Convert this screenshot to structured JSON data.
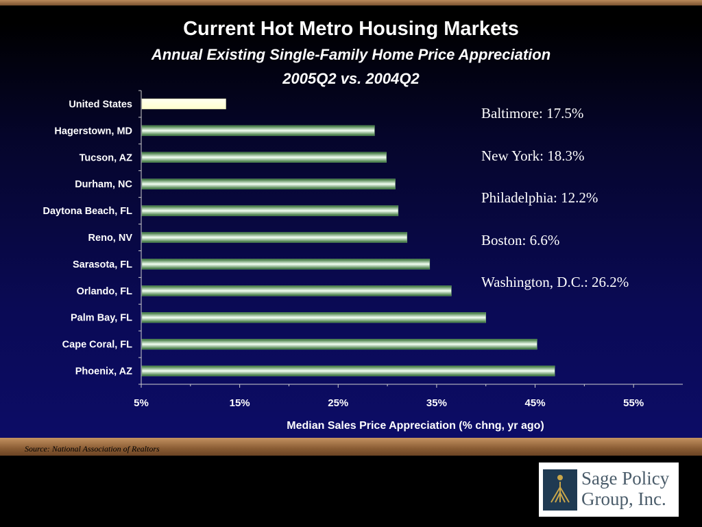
{
  "slide": {
    "title": "Current Hot Metro Housing Markets",
    "subtitle": "Annual Existing Single-Family Home Price Appreciation",
    "period": "2005Q2 vs. 2004Q2",
    "source": "Source: National Association of Realtors"
  },
  "callouts": [
    "Baltimore: 17.5%",
    "New York: 18.3%",
    "Philadelphia: 12.2%",
    "Boston: 6.6%",
    "Washington, D.C.: 26.2%"
  ],
  "logo": {
    "line1": "Sage Policy",
    "line2": "Group, Inc."
  },
  "colors": {
    "highlight": "#ffffcc",
    "bar": "#3a7a3a",
    "bar_light": "#ffffff",
    "text": "#ffffff",
    "accent": "#b9895a"
  },
  "chart_data": {
    "type": "bar",
    "orientation": "horizontal",
    "title": "Current Hot Metro Housing Markets",
    "subtitle": "Annual Existing Single-Family Home Price Appreciation",
    "xlabel": "Median Sales Price Appreciation (% chng, yr ago)",
    "ylabel": "",
    "xlim": [
      5,
      60
    ],
    "xticks": [
      5,
      15,
      25,
      35,
      45,
      55
    ],
    "xtick_labels": [
      "5%",
      "15%",
      "25%",
      "35%",
      "45%",
      "55%"
    ],
    "categories": [
      "United States",
      "Hagerstown, MD",
      "Tucson, AZ",
      "Durham, NC",
      "Daytona Beach, FL",
      "Reno, NV",
      "Sarasota, FL",
      "Orlando, FL",
      "Palm Bay, FL",
      "Cape Coral, FL",
      "Phoenix, AZ"
    ],
    "values": [
      13.6,
      28.7,
      29.9,
      30.8,
      31.1,
      32.0,
      34.3,
      36.5,
      40.0,
      45.2,
      47.0
    ],
    "highlight_category": "United States",
    "grid": false,
    "legend": "none"
  }
}
